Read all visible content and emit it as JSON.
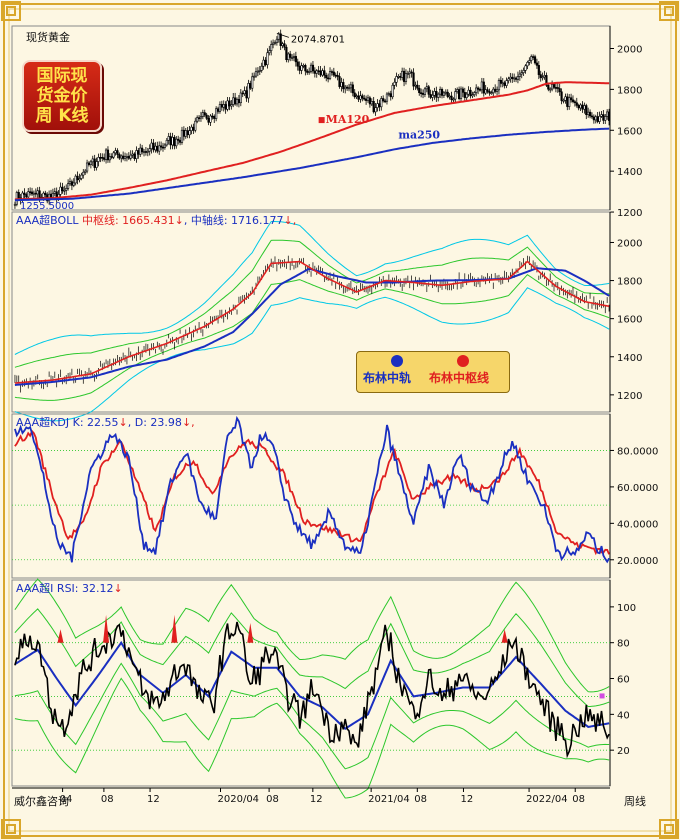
{
  "window": {
    "title": "现货黄金",
    "badge_lines": [
      "国际现",
      "货金价",
      "周  K线"
    ],
    "brand": "威尔鑫咨询",
    "timeframe": "周线"
  },
  "colors": {
    "frame_gold": "#d9a62a",
    "candle": "#000000",
    "ma120": "#e02020",
    "ma250": "#1a2fc0",
    "boll_mid": "#1a2fc0",
    "boll_center": "#e02020",
    "boll_bands": [
      "#00c8e6",
      "#2cc72c"
    ],
    "kdj_k": "#1a2fc0",
    "kdj_d": "#e02020",
    "rsi": "#000000",
    "rsi_ma": "#1a2fc0",
    "rsi_bands": "#2cc72c",
    "guide": "#2cc72c"
  },
  "chart_data": [
    {
      "type": "candlestick",
      "title": "现货黄金",
      "y_ticks": [
        1200,
        1400,
        1600,
        1800,
        2000
      ],
      "ylim": [
        1210,
        2110
      ],
      "annotations": {
        "high_label": "2074.8701",
        "low_label": "1255.5000",
        "ma120_label": "MA120",
        "ma250_label": "ma250"
      },
      "knots": [
        [
          0,
          1275
        ],
        [
          7,
          1288
        ],
        [
          14,
          1278
        ],
        [
          20,
          1272
        ],
        [
          26,
          1300
        ],
        [
          32,
          1360
        ],
        [
          38,
          1420
        ],
        [
          44,
          1465
        ],
        [
          52,
          1482
        ],
        [
          60,
          1475
        ],
        [
          68,
          1490
        ],
        [
          76,
          1520
        ],
        [
          84,
          1555
        ],
        [
          92,
          1600
        ],
        [
          98,
          1650
        ],
        [
          106,
          1700
        ],
        [
          114,
          1735
        ],
        [
          122,
          1780
        ],
        [
          128,
          1900
        ],
        [
          134,
          1980
        ],
        [
          138,
          2074
        ],
        [
          144,
          1945
        ],
        [
          152,
          1900
        ],
        [
          160,
          1880
        ],
        [
          168,
          1860
        ],
        [
          176,
          1795
        ],
        [
          184,
          1750
        ],
        [
          190,
          1720
        ],
        [
          196,
          1770
        ],
        [
          202,
          1845
        ],
        [
          208,
          1875
        ],
        [
          214,
          1800
        ],
        [
          222,
          1780
        ],
        [
          230,
          1770
        ],
        [
          238,
          1790
        ],
        [
          246,
          1800
        ],
        [
          254,
          1810
        ],
        [
          260,
          1830
        ],
        [
          268,
          1890
        ],
        [
          272,
          1950
        ],
        [
          278,
          1840
        ],
        [
          284,
          1800
        ],
        [
          290,
          1750
        ],
        [
          296,
          1720
        ],
        [
          302,
          1680
        ],
        [
          308,
          1650
        ],
        [
          313,
          1665
        ]
      ],
      "ma120_knots": [
        [
          0,
          1262
        ],
        [
          20,
          1268
        ],
        [
          40,
          1285
        ],
        [
          60,
          1318
        ],
        [
          80,
          1355
        ],
        [
          100,
          1398
        ],
        [
          120,
          1440
        ],
        [
          140,
          1495
        ],
        [
          160,
          1560
        ],
        [
          180,
          1628
        ],
        [
          200,
          1685
        ],
        [
          220,
          1718
        ],
        [
          240,
          1746
        ],
        [
          260,
          1774
        ],
        [
          270,
          1795
        ],
        [
          280,
          1828
        ],
        [
          290,
          1835
        ],
        [
          300,
          1833
        ],
        [
          313,
          1830
        ]
      ],
      "ma250_knots": [
        [
          0,
          1258
        ],
        [
          30,
          1265
        ],
        [
          60,
          1290
        ],
        [
          90,
          1330
        ],
        [
          120,
          1370
        ],
        [
          150,
          1415
        ],
        [
          180,
          1468
        ],
        [
          200,
          1507
        ],
        [
          220,
          1538
        ],
        [
          240,
          1560
        ],
        [
          260,
          1578
        ],
        [
          280,
          1592
        ],
        [
          300,
          1603
        ],
        [
          313,
          1608
        ]
      ]
    },
    {
      "type": "line",
      "title": "AAA超BOLL",
      "header": {
        "name": "AAA超BOLL",
        "center_label": "中枢线:",
        "center_value": "1665.431",
        "mid_label": "中轴线:",
        "mid_value": "1716.177",
        "arrow": "↓"
      },
      "legend": [
        "布林中轨",
        "布林中枢线"
      ],
      "y_ticks": [
        1200,
        1400,
        1600,
        1800,
        2000
      ],
      "ylim": [
        1110,
        2160
      ],
      "mid_knots": [
        [
          0,
          1252
        ],
        [
          20,
          1268
        ],
        [
          40,
          1292
        ],
        [
          60,
          1348
        ],
        [
          80,
          1385
        ],
        [
          100,
          1455
        ],
        [
          115,
          1530
        ],
        [
          125,
          1625
        ],
        [
          140,
          1780
        ],
        [
          155,
          1862
        ],
        [
          170,
          1822
        ],
        [
          185,
          1790
        ],
        [
          200,
          1790
        ],
        [
          220,
          1800
        ],
        [
          240,
          1802
        ],
        [
          260,
          1810
        ],
        [
          275,
          1865
        ],
        [
          290,
          1852
        ],
        [
          300,
          1800
        ],
        [
          313,
          1720
        ]
      ],
      "center_knots": [
        [
          0,
          1262
        ],
        [
          20,
          1278
        ],
        [
          40,
          1310
        ],
        [
          60,
          1400
        ],
        [
          80,
          1470
        ],
        [
          100,
          1560
        ],
        [
          115,
          1650
        ],
        [
          125,
          1735
        ],
        [
          135,
          1890
        ],
        [
          150,
          1900
        ],
        [
          165,
          1810
        ],
        [
          180,
          1740
        ],
        [
          195,
          1800
        ],
        [
          210,
          1790
        ],
        [
          225,
          1775
        ],
        [
          240,
          1795
        ],
        [
          260,
          1810
        ],
        [
          270,
          1900
        ],
        [
          285,
          1770
        ],
        [
          300,
          1690
        ],
        [
          313,
          1665
        ]
      ],
      "band_offsets": [
        200,
        110,
        -100,
        -200
      ]
    },
    {
      "type": "line",
      "title": "AAA超KDJ",
      "header": {
        "name": "AAA超KDJ",
        "k_label": "K:",
        "k_value": "22.55",
        "d_label": "D:",
        "d_value": "23.98",
        "arrow": "↓"
      },
      "y_ticks": [
        "20.0000",
        "40.0000",
        "60.0000",
        "80.0000"
      ],
      "ylim": [
        10,
        100
      ],
      "guides": [
        20,
        50,
        80
      ],
      "k_knots": [
        [
          0,
          88
        ],
        [
          8,
          95
        ],
        [
          15,
          65
        ],
        [
          22,
          30
        ],
        [
          30,
          22
        ],
        [
          40,
          70
        ],
        [
          52,
          90
        ],
        [
          60,
          75
        ],
        [
          68,
          28
        ],
        [
          74,
          25
        ],
        [
          82,
          62
        ],
        [
          90,
          80
        ],
        [
          98,
          50
        ],
        [
          106,
          42
        ],
        [
          112,
          88
        ],
        [
          118,
          95
        ],
        [
          124,
          70
        ],
        [
          130,
          88
        ],
        [
          136,
          82
        ],
        [
          142,
          55
        ],
        [
          150,
          35
        ],
        [
          158,
          28
        ],
        [
          166,
          46
        ],
        [
          174,
          28
        ],
        [
          182,
          22
        ],
        [
          190,
          62
        ],
        [
          196,
          92
        ],
        [
          202,
          68
        ],
        [
          210,
          40
        ],
        [
          218,
          70
        ],
        [
          226,
          50
        ],
        [
          234,
          78
        ],
        [
          240,
          62
        ],
        [
          248,
          52
        ],
        [
          256,
          70
        ],
        [
          262,
          85
        ],
        [
          270,
          65
        ],
        [
          278,
          50
        ],
        [
          286,
          25
        ],
        [
          294,
          22
        ],
        [
          302,
          35
        ],
        [
          308,
          24
        ],
        [
          313,
          22
        ]
      ],
      "d_knots": [
        [
          0,
          84
        ],
        [
          10,
          90
        ],
        [
          20,
          55
        ],
        [
          28,
          32
        ],
        [
          36,
          40
        ],
        [
          46,
          72
        ],
        [
          56,
          85
        ],
        [
          66,
          58
        ],
        [
          74,
          35
        ],
        [
          84,
          65
        ],
        [
          94,
          75
        ],
        [
          104,
          55
        ],
        [
          112,
          75
        ],
        [
          122,
          85
        ],
        [
          132,
          80
        ],
        [
          142,
          66
        ],
        [
          152,
          42
        ],
        [
          162,
          38
        ],
        [
          172,
          34
        ],
        [
          182,
          30
        ],
        [
          192,
          60
        ],
        [
          200,
          80
        ],
        [
          210,
          52
        ],
        [
          220,
          62
        ],
        [
          232,
          65
        ],
        [
          244,
          58
        ],
        [
          256,
          65
        ],
        [
          266,
          80
        ],
        [
          276,
          62
        ],
        [
          286,
          35
        ],
        [
          296,
          28
        ],
        [
          306,
          26
        ],
        [
          313,
          24
        ]
      ]
    },
    {
      "type": "line",
      "title": "AAA超I RSI",
      "header": {
        "name": "AAA超I RSI:",
        "value": "32.12",
        "arrow": "↓"
      },
      "y_ticks": [
        20,
        40,
        60,
        80,
        100
      ],
      "ylim": [
        0,
        115
      ],
      "guides": [
        20,
        50,
        80
      ],
      "rsi_knots": [
        [
          0,
          70
        ],
        [
          8,
          85
        ],
        [
          14,
          72
        ],
        [
          20,
          40
        ],
        [
          26,
          33
        ],
        [
          34,
          60
        ],
        [
          40,
          70
        ],
        [
          48,
          82
        ],
        [
          56,
          88
        ],
        [
          62,
          68
        ],
        [
          68,
          50
        ],
        [
          76,
          45
        ],
        [
          84,
          62
        ],
        [
          90,
          70
        ],
        [
          96,
          52
        ],
        [
          104,
          45
        ],
        [
          112,
          85
        ],
        [
          118,
          90
        ],
        [
          124,
          55
        ],
        [
          130,
          68
        ],
        [
          136,
          75
        ],
        [
          142,
          55
        ],
        [
          150,
          40
        ],
        [
          158,
          55
        ],
        [
          166,
          30
        ],
        [
          172,
          35
        ],
        [
          180,
          22
        ],
        [
          188,
          55
        ],
        [
          196,
          85
        ],
        [
          202,
          62
        ],
        [
          210,
          40
        ],
        [
          218,
          60
        ],
        [
          226,
          48
        ],
        [
          234,
          62
        ],
        [
          240,
          55
        ],
        [
          246,
          48
        ],
        [
          254,
          60
        ],
        [
          262,
          82
        ],
        [
          270,
          62
        ],
        [
          276,
          50
        ],
        [
          284,
          36
        ],
        [
          292,
          24
        ],
        [
          300,
          40
        ],
        [
          306,
          36
        ],
        [
          313,
          32
        ]
      ],
      "rsi_ma_knots": [
        [
          0,
          68
        ],
        [
          12,
          76
        ],
        [
          22,
          60
        ],
        [
          32,
          45
        ],
        [
          44,
          62
        ],
        [
          56,
          80
        ],
        [
          66,
          62
        ],
        [
          78,
          52
        ],
        [
          90,
          62
        ],
        [
          102,
          50
        ],
        [
          114,
          75
        ],
        [
          126,
          66
        ],
        [
          138,
          66
        ],
        [
          150,
          50
        ],
        [
          162,
          44
        ],
        [
          174,
          32
        ],
        [
          186,
          40
        ],
        [
          198,
          70
        ],
        [
          210,
          50
        ],
        [
          222,
          52
        ],
        [
          236,
          55
        ],
        [
          250,
          55
        ],
        [
          264,
          72
        ],
        [
          278,
          56
        ],
        [
          290,
          42
        ],
        [
          302,
          33
        ],
        [
          313,
          35
        ]
      ]
    }
  ],
  "x_axis": {
    "labels": [
      "04",
      "08",
      "12",
      "2020/04",
      "08",
      "12",
      "2021/04",
      "08",
      "12",
      "2022/04",
      "08"
    ],
    "positions": [
      20,
      37,
      56,
      85,
      105,
      123,
      147,
      166,
      185,
      212,
      231
    ]
  }
}
